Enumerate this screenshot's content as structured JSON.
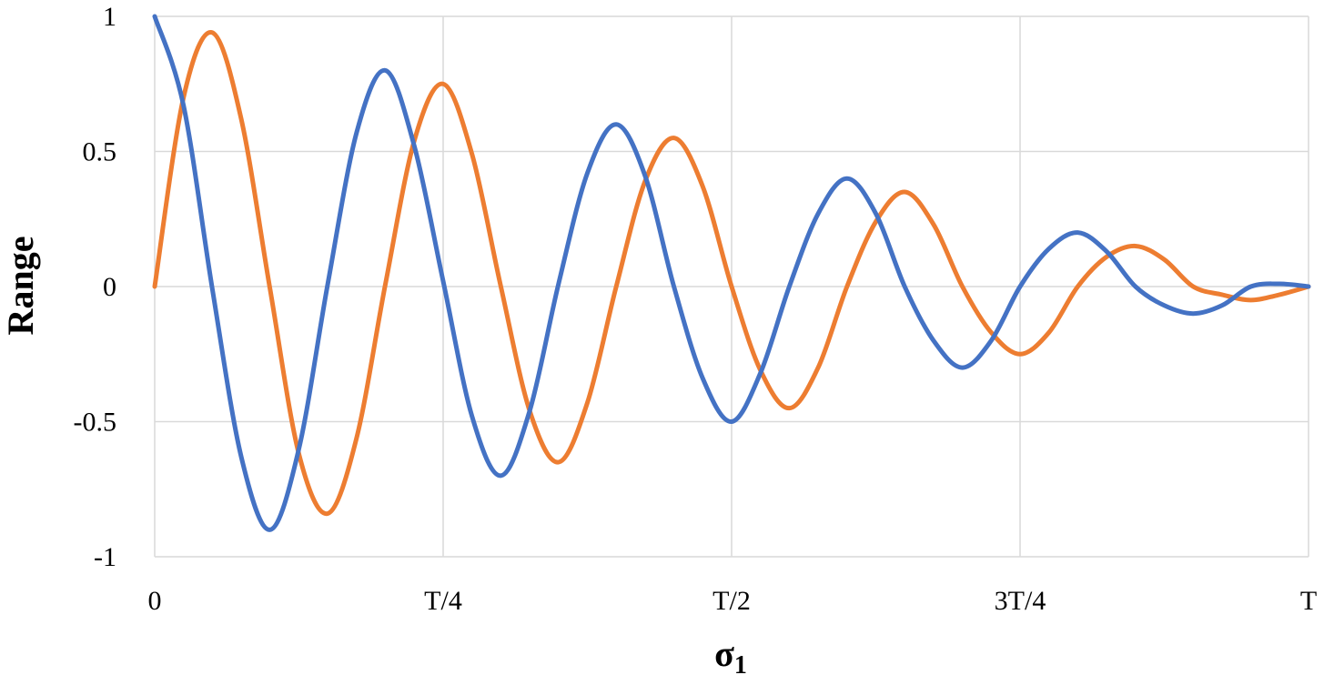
{
  "chart_data": {
    "type": "line",
    "title": "",
    "xlabel": "σ",
    "xlabel_subscript": "1",
    "ylabel": "Range",
    "xlim": [
      0,
      1
    ],
    "ylim": [
      -1,
      1
    ],
    "grid": true,
    "legend": "none",
    "x_ticks": [
      {
        "value": 0,
        "label": "0"
      },
      {
        "value": 0.25,
        "label": "T/4"
      },
      {
        "value": 0.5,
        "label": "T/2"
      },
      {
        "value": 0.75,
        "label": "3T/4"
      },
      {
        "value": 1,
        "label": "T"
      }
    ],
    "y_ticks": [
      {
        "value": 1,
        "label": "1"
      },
      {
        "value": 0.5,
        "label": "0.5"
      },
      {
        "value": 0,
        "label": "0"
      },
      {
        "value": -0.5,
        "label": "-0.5"
      },
      {
        "value": -1,
        "label": "-1"
      }
    ],
    "series": [
      {
        "color": "#4472c4",
        "x": [
          0,
          0.025,
          0.05,
          0.075,
          0.1,
          0.125,
          0.15,
          0.175,
          0.2,
          0.225,
          0.25,
          0.275,
          0.3,
          0.325,
          0.35,
          0.375,
          0.4,
          0.425,
          0.45,
          0.475,
          0.5,
          0.525,
          0.55,
          0.575,
          0.6,
          0.625,
          0.65,
          0.675,
          0.7,
          0.725,
          0.75,
          0.775,
          0.8,
          0.825,
          0.85,
          0.875,
          0.9,
          0.925,
          0.95,
          0.975,
          1
        ],
        "values": [
          1,
          0.67,
          -0.01,
          -0.63,
          -0.9,
          -0.6,
          0.01,
          0.57,
          0.8,
          0.52,
          0.02,
          -0.48,
          -0.7,
          -0.46,
          0.01,
          0.42,
          0.6,
          0.41,
          0.0,
          -0.34,
          -0.5,
          -0.32,
          0.0,
          0.27,
          0.4,
          0.27,
          0.0,
          -0.2,
          -0.3,
          -0.2,
          0.0,
          0.14,
          0.2,
          0.13,
          0.0,
          -0.07,
          -0.1,
          -0.07,
          0.0,
          0.01,
          0
        ]
      },
      {
        "color": "#ed7d31",
        "x": [
          0,
          0.025,
          0.05,
          0.075,
          0.1,
          0.125,
          0.15,
          0.175,
          0.2,
          0.225,
          0.25,
          0.275,
          0.3,
          0.325,
          0.35,
          0.375,
          0.4,
          0.425,
          0.45,
          0.475,
          0.5,
          0.525,
          0.55,
          0.575,
          0.6,
          0.625,
          0.65,
          0.675,
          0.7,
          0.725,
          0.75,
          0.775,
          0.8,
          0.825,
          0.85,
          0.875,
          0.9,
          0.925,
          0.95,
          0.975,
          1
        ],
        "values": [
          0,
          0.7,
          0.94,
          0.62,
          -0.01,
          -0.62,
          -0.84,
          -0.56,
          0.01,
          0.54,
          0.75,
          0.49,
          0.0,
          -0.46,
          -0.65,
          -0.43,
          0.0,
          0.39,
          0.55,
          0.37,
          0.0,
          -0.31,
          -0.45,
          -0.3,
          0.0,
          0.24,
          0.35,
          0.23,
          0.0,
          -0.17,
          -0.25,
          -0.17,
          0.0,
          0.11,
          0.15,
          0.1,
          0.0,
          -0.03,
          -0.05,
          -0.03,
          0
        ]
      }
    ]
  }
}
